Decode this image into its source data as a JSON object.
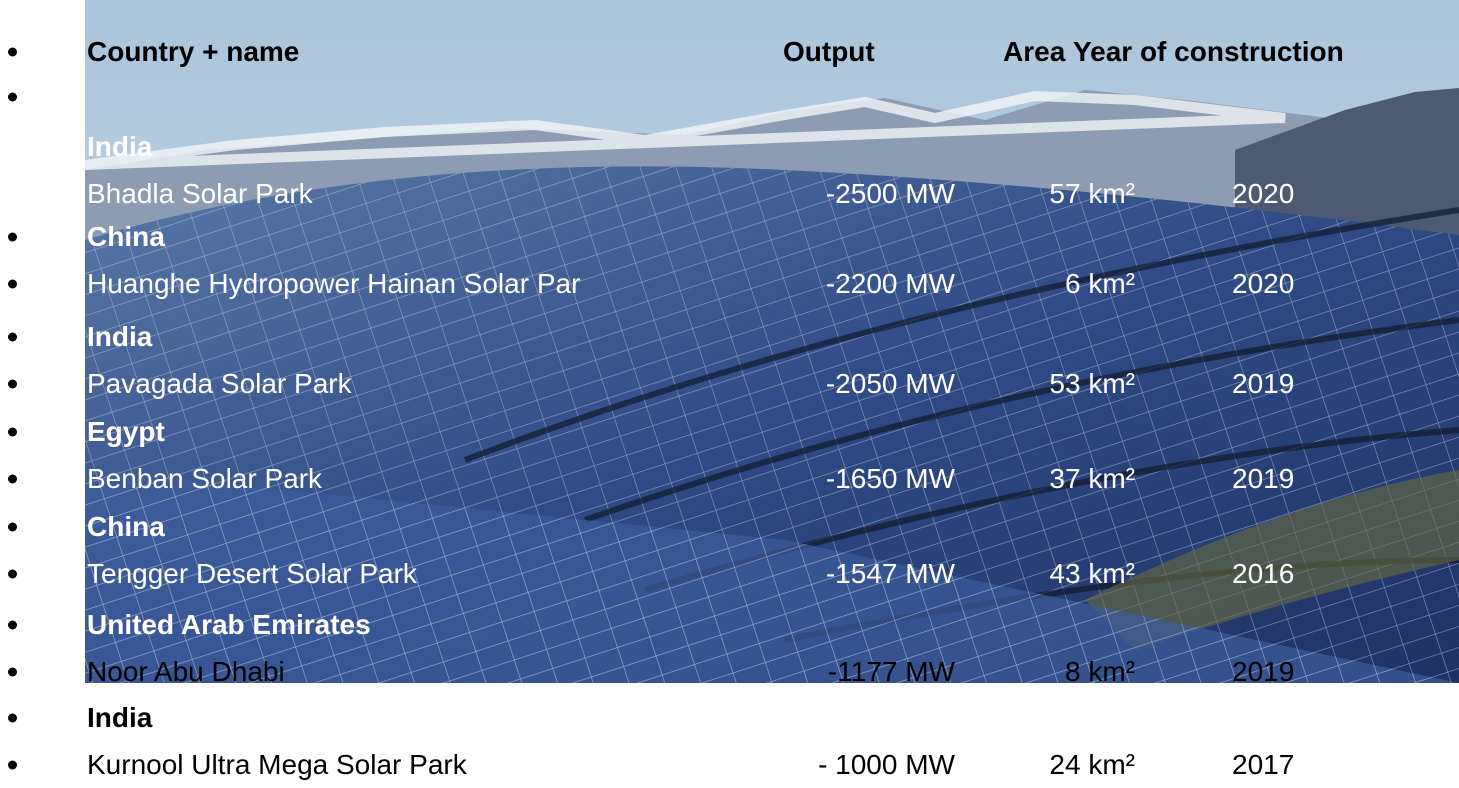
{
  "header": {
    "country": "Country + name",
    "output": "Output",
    "area": "Area",
    "year": "Year of construction"
  },
  "entries": [
    {
      "country": "India",
      "name": "Bhadla Solar Park",
      "output": "-2500 MW",
      "area": "57 km²",
      "year": "2020"
    },
    {
      "country": "China",
      "name": "Huanghe Hydropower Hainan Solar Par",
      "output": "-2200 MW",
      "area": "6 km²",
      "year": "2020"
    },
    {
      "country": "India",
      "name": "Pavagada Solar Park",
      "output": "-2050 MW",
      "area": "53 km²",
      "year": "2019"
    },
    {
      "country": "Egypt",
      "name": "Benban Solar Park",
      "output": "-1650 MW",
      "area": "37 km²",
      "year": "2019"
    },
    {
      "country": "China",
      "name": "Tengger Desert Solar Park",
      "output": "-1547 MW",
      "area": "43 km²",
      "year": "2016"
    },
    {
      "country": "United Arab Emirates",
      "name": "Noor Abu Dhabi",
      "output": "-1177 MW",
      "area": "8 km²",
      "year": "2019"
    },
    {
      "country": "India",
      "name": "Kurnool Ultra Mega Solar Park",
      "output": "- 1000 MW",
      "area": "24 km²",
      "year": "2017"
    }
  ]
}
